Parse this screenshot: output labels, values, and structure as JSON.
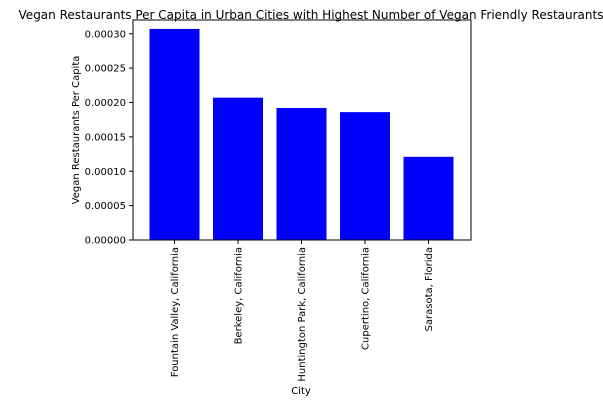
{
  "chart_data": {
    "type": "bar",
    "title": "Vegan Restaurants Per Capita in Urban Cities with Highest Number of Vegan Friendly Restaurants",
    "xlabel": "City",
    "ylabel": "Vegan Restaurants Per Capita",
    "categories": [
      "Fountain Valley, California",
      "Berkeley, California",
      "Huntington Park, California",
      "Cupertino, California",
      "Sarasota, Florida"
    ],
    "values": [
      0.000307,
      0.000207,
      0.000192,
      0.000186,
      0.000121
    ],
    "ylim": [
      0,
      0.00032
    ],
    "yticks": [
      "0.00000",
      "0.00005",
      "0.00010",
      "0.00015",
      "0.00020",
      "0.00025",
      "0.00030"
    ],
    "bar_color": "#0000ff",
    "grid": false
  }
}
